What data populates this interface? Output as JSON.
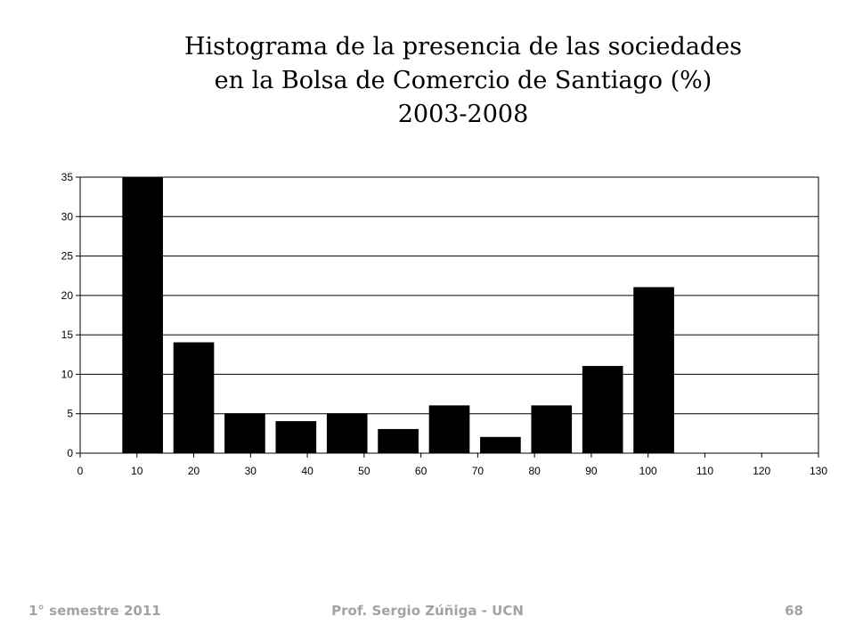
{
  "chart_data": {
    "type": "bar",
    "title": [
      "Histograma de la presencia de las sociedades",
      "en la Bolsa de Comercio de Santiago (%)",
      "2003-2008"
    ],
    "xlabel": "",
    "ylabel": "",
    "xlim": [
      0,
      130
    ],
    "ylim": [
      0,
      35
    ],
    "xticks": [
      0,
      10,
      20,
      30,
      40,
      50,
      60,
      70,
      80,
      90,
      100,
      110,
      120,
      130
    ],
    "yticks": [
      0,
      5,
      10,
      15,
      20,
      25,
      30,
      35
    ],
    "grid": "horizontal",
    "bar_color": "#000000",
    "bins": [
      {
        "x": 11,
        "value": 35
      },
      {
        "x": 20,
        "value": 14
      },
      {
        "x": 29,
        "value": 5
      },
      {
        "x": 38,
        "value": 4
      },
      {
        "x": 47,
        "value": 5
      },
      {
        "x": 56,
        "value": 3
      },
      {
        "x": 65,
        "value": 6
      },
      {
        "x": 74,
        "value": 2
      },
      {
        "x": 83,
        "value": 6
      },
      {
        "x": 92,
        "value": 11
      },
      {
        "x": 101,
        "value": 21
      }
    ]
  },
  "footer": {
    "left": "1° semestre 2011",
    "center": "Prof. Sergio Zúñiga - UCN",
    "right": "68"
  }
}
